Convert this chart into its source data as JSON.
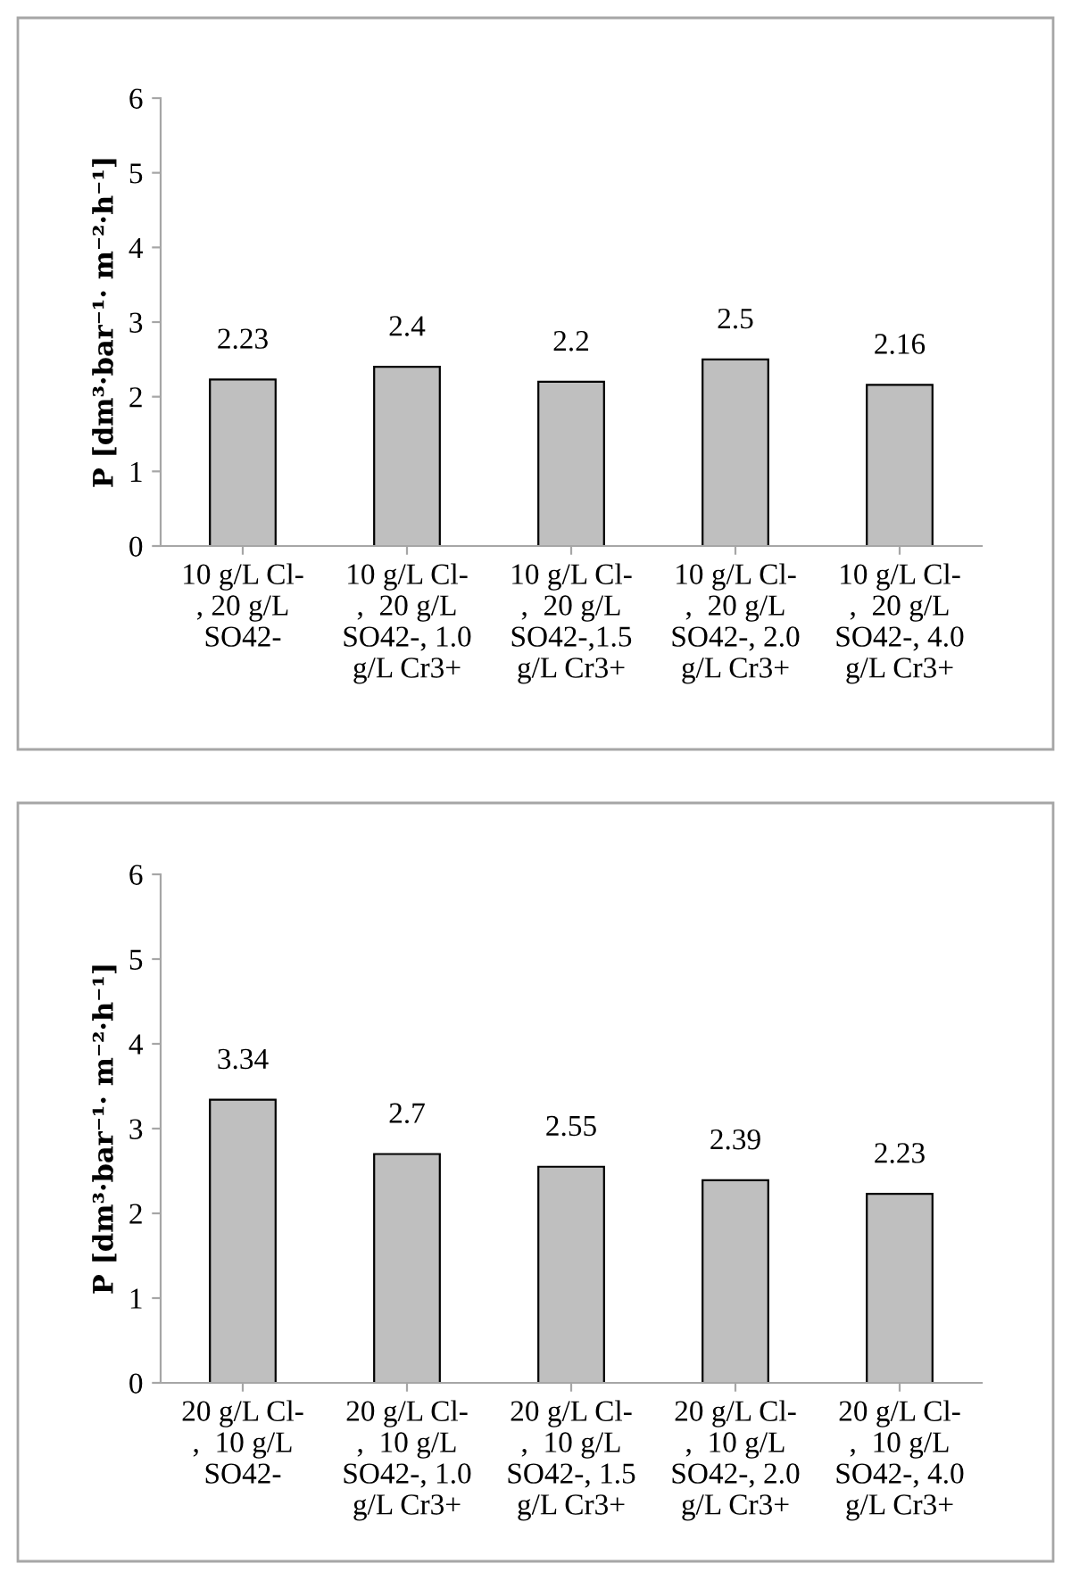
{
  "chart_data": [
    {
      "type": "bar",
      "ylabel": "P [dm³·bar⁻¹· m⁻²·h⁻¹]",
      "categories": [
        "10 g/L Cl-\n, 20 g/L\nSO42-",
        "10 g/L Cl-\n,  20 g/L\nSO42-, 1.0\ng/L Cr3+",
        "10 g/L Cl-\n,  20 g/L\nSO42-,1.5\ng/L Cr3+",
        "10 g/L Cl-\n,  20 g/L\nSO42-, 2.0\ng/L Cr3+",
        "10 g/L Cl-\n,  20 g/L\nSO42-, 4.0\ng/L Cr3+"
      ],
      "values": [
        2.23,
        2.4,
        2.2,
        2.5,
        2.16
      ],
      "color": "#bfbfbf",
      "ylim": [
        0,
        6
      ],
      "yticks": [
        0,
        1,
        2,
        3,
        4,
        5,
        6
      ],
      "data_labels": true,
      "grid": false,
      "legend": false
    },
    {
      "type": "bar",
      "ylabel": "P [dm³·bar⁻¹· m⁻²·h⁻¹]",
      "categories": [
        "20 g/L Cl-\n,  10 g/L\nSO42-",
        "20 g/L Cl-\n,  10 g/L\nSO42-, 1.0\ng/L Cr3+",
        "20 g/L Cl-\n,  10 g/L\nSO42-, 1.5\ng/L Cr3+",
        "20 g/L Cl-\n,  10 g/L\nSO42-, 2.0\ng/L Cr3+",
        "20 g/L Cl-\n,  10 g/L\nSO42-, 4.0\ng/L Cr3+"
      ],
      "values": [
        3.34,
        2.7,
        2.55,
        2.39,
        2.23
      ],
      "color": "#bfbfbf",
      "ylim": [
        0,
        6
      ],
      "yticks": [
        0,
        1,
        2,
        3,
        4,
        5,
        6
      ],
      "data_labels": true,
      "grid": false,
      "legend": false
    }
  ]
}
